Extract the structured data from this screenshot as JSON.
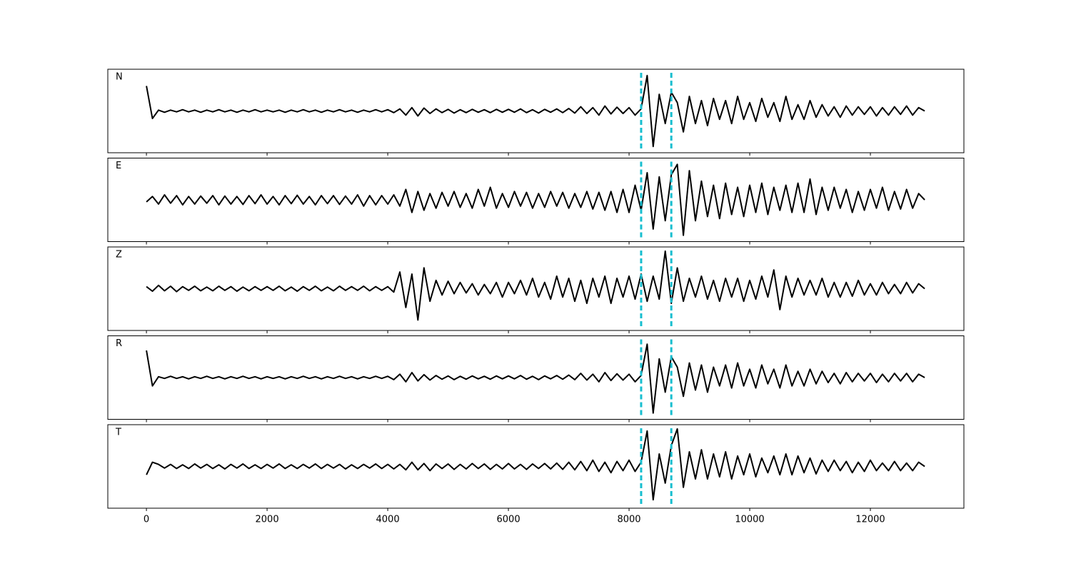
{
  "chart_data": {
    "type": "line",
    "layout": "stacked",
    "x": [
      0,
      100,
      200,
      300,
      400,
      500,
      600,
      700,
      800,
      900,
      1000,
      1100,
      1200,
      1300,
      1400,
      1500,
      1600,
      1700,
      1800,
      1900,
      2000,
      2100,
      2200,
      2300,
      2400,
      2500,
      2600,
      2700,
      2800,
      2900,
      3000,
      3100,
      3200,
      3300,
      3400,
      3500,
      3600,
      3700,
      3800,
      3900,
      4000,
      4100,
      4200,
      4300,
      4400,
      4500,
      4600,
      4700,
      4800,
      4900,
      5000,
      5100,
      5200,
      5300,
      5400,
      5500,
      5600,
      5700,
      5800,
      5900,
      6000,
      6100,
      6200,
      6300,
      6400,
      6500,
      6600,
      6700,
      6800,
      6900,
      7000,
      7100,
      7200,
      7300,
      7400,
      7500,
      7600,
      7700,
      7800,
      7900,
      8000,
      8100,
      8200,
      8300,
      8400,
      8500,
      8600,
      8700,
      8800,
      8900,
      9000,
      9100,
      9200,
      9300,
      9400,
      9500,
      9600,
      9700,
      9800,
      9900,
      10000,
      10100,
      10200,
      10300,
      10400,
      10500,
      10600,
      10700,
      10800,
      10900,
      11000,
      11100,
      11200,
      11300,
      11400,
      11500,
      11600,
      11700,
      11800,
      11900,
      12000,
      12100,
      12200,
      12300,
      12400,
      12500,
      12600,
      12700,
      12800,
      12900
    ],
    "xlim": [
      -640,
      13550
    ],
    "xticks": [
      0,
      2000,
      4000,
      6000,
      8000,
      10000,
      12000
    ],
    "ylim": [
      -1,
      1
    ],
    "vlines": [
      8200,
      8700
    ],
    "vline_color": "#17becf",
    "series": [
      {
        "name": "N",
        "color": "#000000",
        "values": [
          0.6,
          -0.18,
          0.02,
          -0.03,
          0.02,
          -0.02,
          0.03,
          -0.02,
          0.02,
          -0.03,
          0.02,
          -0.02,
          0.03,
          -0.02,
          0.02,
          -0.03,
          0.02,
          -0.02,
          0.03,
          -0.02,
          0.02,
          -0.02,
          0.02,
          -0.03,
          0.02,
          -0.02,
          0.03,
          -0.02,
          0.02,
          -0.03,
          0.02,
          -0.02,
          0.03,
          -0.02,
          0.02,
          -0.03,
          0.02,
          -0.02,
          0.03,
          -0.02,
          0.03,
          -0.04,
          0.05,
          -0.1,
          0.08,
          -0.12,
          0.07,
          -0.06,
          0.05,
          -0.04,
          0.04,
          -0.05,
          0.03,
          -0.04,
          0.04,
          -0.03,
          0.03,
          -0.04,
          0.04,
          -0.03,
          0.04,
          -0.03,
          0.05,
          -0.04,
          0.03,
          -0.05,
          0.04,
          -0.03,
          0.05,
          -0.04,
          0.06,
          -0.05,
          0.1,
          -0.06,
          0.08,
          -0.1,
          0.12,
          -0.07,
          0.09,
          -0.06,
          0.08,
          -0.1,
          0.05,
          0.85,
          -0.85,
          0.4,
          -0.3,
          0.45,
          0.2,
          -0.5,
          0.35,
          -0.3,
          0.25,
          -0.35,
          0.3,
          -0.2,
          0.25,
          -0.3,
          0.35,
          -0.2,
          0.2,
          -0.25,
          0.3,
          -0.15,
          0.2,
          -0.25,
          0.35,
          -0.2,
          0.15,
          -0.2,
          0.25,
          -0.15,
          0.15,
          -0.12,
          0.1,
          -0.15,
          0.12,
          -0.1,
          0.1,
          -0.08,
          0.1,
          -0.12,
          0.08,
          -0.1,
          0.1,
          -0.08,
          0.12,
          -0.1,
          0.08,
          0
        ]
      },
      {
        "name": "E",
        "color": "#000000",
        "values": [
          -0.05,
          0.08,
          -0.1,
          0.12,
          -0.08,
          0.1,
          -0.12,
          0.08,
          -0.1,
          0.09,
          -0.08,
          0.1,
          -0.12,
          0.09,
          -0.1,
          0.08,
          -0.11,
          0.1,
          -0.09,
          0.12,
          -0.1,
          0.08,
          -0.12,
          0.1,
          -0.09,
          0.11,
          -0.1,
          0.08,
          -0.12,
          0.1,
          -0.09,
          0.1,
          -0.11,
          0.09,
          -0.1,
          0.12,
          -0.15,
          0.1,
          -0.12,
          0.1,
          -0.1,
          0.12,
          -0.15,
          0.25,
          -0.3,
          0.2,
          -0.25,
          0.15,
          -0.2,
          0.18,
          -0.15,
          0.2,
          -0.18,
          0.15,
          -0.2,
          0.25,
          -0.15,
          0.3,
          -0.2,
          0.15,
          -0.18,
          0.2,
          -0.15,
          0.18,
          -0.2,
          0.15,
          -0.18,
          0.2,
          -0.15,
          0.18,
          -0.2,
          0.15,
          -0.18,
          0.2,
          -0.22,
          0.18,
          -0.25,
          0.2,
          -0.3,
          0.25,
          -0.3,
          0.35,
          -0.25,
          0.65,
          -0.7,
          0.55,
          -0.5,
          0.6,
          0.85,
          -0.85,
          0.7,
          -0.5,
          0.45,
          -0.4,
          0.35,
          -0.45,
          0.4,
          -0.35,
          0.3,
          -0.4,
          0.35,
          -0.3,
          0.4,
          -0.35,
          0.3,
          -0.25,
          0.35,
          -0.3,
          0.4,
          -0.3,
          0.5,
          -0.35,
          0.3,
          -0.25,
          0.3,
          -0.2,
          0.25,
          -0.3,
          0.2,
          -0.25,
          0.25,
          -0.2,
          0.3,
          -0.25,
          0.2,
          -0.22,
          0.25,
          -0.2,
          0.15,
          0
        ]
      },
      {
        "name": "Z",
        "color": "#000000",
        "values": [
          0.05,
          -0.06,
          0.08,
          -0.05,
          0.06,
          -0.07,
          0.05,
          -0.04,
          0.06,
          -0.05,
          0.04,
          -0.05,
          0.06,
          -0.04,
          0.05,
          -0.06,
          0.04,
          -0.05,
          0.05,
          -0.04,
          0.05,
          -0.04,
          0.06,
          -0.05,
          0.04,
          -0.06,
          0.05,
          -0.04,
          0.06,
          -0.05,
          0.04,
          -0.05,
          0.06,
          -0.04,
          0.05,
          -0.04,
          0.06,
          -0.05,
          0.05,
          -0.04,
          0.05,
          -0.08,
          0.4,
          -0.45,
          0.35,
          -0.75,
          0.5,
          -0.3,
          0.2,
          -0.15,
          0.18,
          -0.12,
          0.15,
          -0.1,
          0.12,
          -0.15,
          0.1,
          -0.12,
          0.15,
          -0.2,
          0.15,
          -0.12,
          0.2,
          -0.15,
          0.25,
          -0.2,
          0.15,
          -0.25,
          0.3,
          -0.2,
          0.25,
          -0.3,
          0.2,
          -0.35,
          0.25,
          -0.2,
          0.3,
          -0.35,
          0.25,
          -0.2,
          0.3,
          -0.25,
          0.35,
          -0.3,
          0.3,
          -0.25,
          0.9,
          -0.35,
          0.5,
          -0.3,
          0.25,
          -0.2,
          0.3,
          -0.25,
          0.2,
          -0.3,
          0.25,
          -0.2,
          0.25,
          -0.3,
          0.2,
          -0.25,
          0.3,
          -0.2,
          0.45,
          -0.5,
          0.3,
          -0.2,
          0.25,
          -0.15,
          0.2,
          -0.15,
          0.25,
          -0.2,
          0.15,
          -0.2,
          0.15,
          -0.18,
          0.2,
          -0.15,
          0.12,
          -0.15,
          0.15,
          -0.12,
          0.1,
          -0.12,
          0.15,
          -0.1,
          0.12,
          0
        ]
      },
      {
        "name": "R",
        "color": "#000000",
        "values": [
          0.65,
          -0.2,
          0.02,
          -0.02,
          0.03,
          -0.02,
          0.02,
          -0.03,
          0.02,
          -0.02,
          0.03,
          -0.02,
          0.02,
          -0.03,
          0.02,
          -0.02,
          0.03,
          -0.02,
          0.02,
          -0.03,
          0.02,
          -0.02,
          0.02,
          -0.03,
          0.02,
          -0.02,
          0.03,
          -0.02,
          0.02,
          -0.03,
          0.02,
          -0.02,
          0.03,
          -0.02,
          0.02,
          -0.03,
          0.02,
          -0.02,
          0.03,
          -0.02,
          0.03,
          -0.05,
          0.08,
          -0.1,
          0.12,
          -0.08,
          0.07,
          -0.06,
          0.05,
          -0.04,
          0.04,
          -0.05,
          0.03,
          -0.04,
          0.04,
          -0.03,
          0.03,
          -0.04,
          0.04,
          -0.03,
          0.04,
          -0.03,
          0.05,
          -0.04,
          0.03,
          -0.05,
          0.04,
          -0.03,
          0.05,
          -0.04,
          0.06,
          -0.05,
          0.1,
          -0.06,
          0.08,
          -0.1,
          0.12,
          -0.07,
          0.09,
          -0.06,
          0.08,
          -0.1,
          0.05,
          0.8,
          -0.85,
          0.45,
          -0.35,
          0.5,
          0.25,
          -0.45,
          0.35,
          -0.3,
          0.3,
          -0.35,
          0.25,
          -0.2,
          0.3,
          -0.25,
          0.35,
          -0.2,
          0.2,
          -0.25,
          0.3,
          -0.15,
          0.2,
          -0.25,
          0.3,
          -0.2,
          0.15,
          -0.2,
          0.2,
          -0.15,
          0.15,
          -0.12,
          0.1,
          -0.15,
          0.12,
          -0.1,
          0.1,
          -0.08,
          0.1,
          -0.12,
          0.08,
          -0.1,
          0.1,
          -0.08,
          0.1,
          -0.1,
          0.08,
          0
        ]
      },
      {
        "name": "T",
        "color": "#000000",
        "values": [
          -0.2,
          0.1,
          0.05,
          -0.04,
          0.05,
          -0.05,
          0.04,
          -0.05,
          0.06,
          -0.04,
          0.05,
          -0.05,
          0.04,
          -0.06,
          0.05,
          -0.04,
          0.06,
          -0.05,
          0.04,
          -0.05,
          0.05,
          -0.04,
          0.06,
          -0.05,
          0.04,
          -0.05,
          0.05,
          -0.04,
          0.06,
          -0.05,
          0.05,
          -0.04,
          0.05,
          -0.06,
          0.04,
          -0.05,
          0.05,
          -0.04,
          0.06,
          -0.05,
          0.05,
          -0.06,
          0.05,
          -0.08,
          0.1,
          -0.08,
          0.07,
          -0.1,
          0.06,
          -0.05,
          0.06,
          -0.07,
          0.05,
          -0.06,
          0.07,
          -0.05,
          0.06,
          -0.07,
          0.05,
          -0.06,
          0.07,
          -0.06,
          0.05,
          -0.07,
          0.06,
          -0.05,
          0.07,
          -0.06,
          0.08,
          -0.07,
          0.1,
          -0.08,
          0.12,
          -0.1,
          0.15,
          -0.12,
          0.1,
          -0.15,
          0.12,
          -0.1,
          0.15,
          -0.12,
          0.1,
          0.85,
          -0.8,
          0.3,
          -0.4,
          0.5,
          0.9,
          -0.5,
          0.35,
          -0.3,
          0.4,
          -0.3,
          0.3,
          -0.25,
          0.35,
          -0.3,
          0.25,
          -0.2,
          0.3,
          -0.25,
          0.2,
          -0.15,
          0.25,
          -0.2,
          0.3,
          -0.2,
          0.25,
          -0.15,
          0.2,
          -0.18,
          0.15,
          -0.12,
          0.15,
          -0.1,
          0.12,
          -0.15,
          0.1,
          -0.12,
          0.15,
          -0.1,
          0.08,
          -0.1,
          0.12,
          -0.1,
          0.08,
          -0.1,
          0.1,
          0
        ]
      }
    ]
  }
}
